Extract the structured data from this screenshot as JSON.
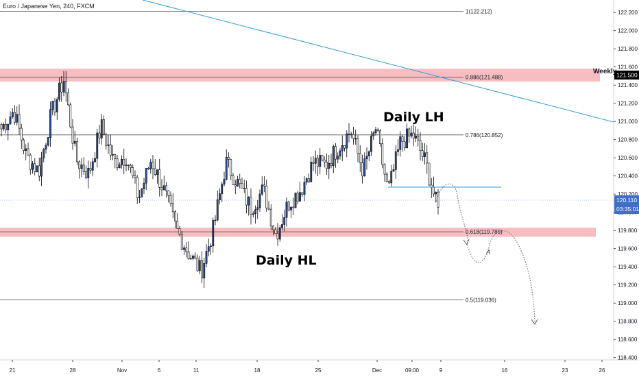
{
  "chart_data": {
    "type": "candlestick",
    "title": "Euro / Japanese Yen, 240, FXCM",
    "price_axis": {
      "ticks": [
        "122.200",
        "122.000",
        "121.800",
        "121.600",
        "121.400",
        "121.200",
        "121.000",
        "120.800",
        "120.600",
        "120.400",
        "120.200",
        "120.000",
        "119.800",
        "119.600",
        "119.400",
        "119.200",
        "119.000",
        "118.800",
        "118.600",
        "118.400"
      ],
      "range": [
        118.28,
        122.4
      ]
    },
    "time_axis": {
      "labels": [
        "21",
        "28",
        "Nov",
        "6",
        "11",
        "18",
        "25",
        "Dec",
        "09:00",
        "9",
        "16",
        "23",
        "26"
      ]
    },
    "fib_levels": [
      {
        "label": "1(122.212)",
        "value": 122.212
      },
      {
        "label": "0.886(121.488)",
        "value": 121.488
      },
      {
        "label": "0.786(120.852)",
        "value": 120.852
      },
      {
        "label": "0.618(119.785)",
        "value": 119.785
      },
      {
        "label": "0.5(119.036)",
        "value": 119.036
      }
    ],
    "zones": [
      {
        "from": 121.44,
        "to": 121.58
      },
      {
        "from": 119.73,
        "to": 119.83
      }
    ],
    "weekly_label": "Weekly",
    "weekly_price": "121.500",
    "current_price": "120.110",
    "countdown": "03:35:01",
    "annotations": [
      "Daily LH",
      "Daily HL"
    ],
    "colors": {
      "up": "#2a4d96",
      "down": "#ffffff",
      "wick": "#000000",
      "zone": "#f4a7ac",
      "trend": "#2e9bd6",
      "fib": "#555555",
      "tag": "#3f6fc6",
      "weekly_tag": "#000000"
    },
    "key_closes": [
      120.92,
      121.12,
      120.62,
      120.45,
      121.08,
      121.46,
      120.58,
      120.42,
      120.95,
      120.55,
      120.62,
      120.15,
      120.58,
      120.25,
      119.82,
      119.55,
      119.35,
      119.82,
      120.55,
      120.3,
      120.05,
      120.25,
      119.75,
      120.1,
      120.25,
      120.55,
      120.52,
      120.72,
      120.9,
      120.45,
      120.92,
      120.22,
      120.78,
      120.85,
      120.55,
      120.02
    ]
  }
}
